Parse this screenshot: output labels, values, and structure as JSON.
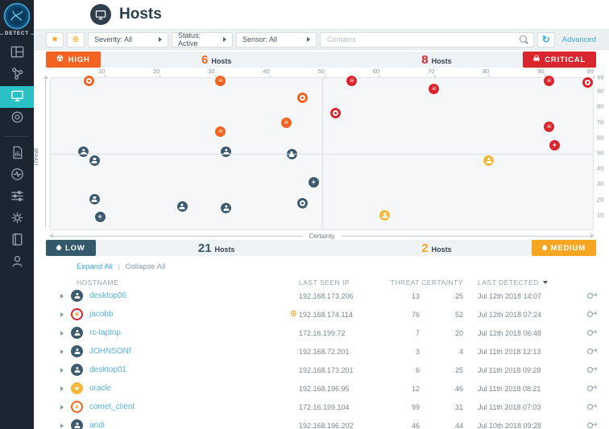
{
  "glyphs": {
    "star": "★",
    "crosshair": "⊕",
    "skull": "☠",
    "plus": "+",
    "radiation": "☢",
    "refresh": "↻"
  },
  "colors": {
    "accent_teal": "#2bc1c4",
    "high_orange": "#f26322",
    "critical_red": "#d9252e",
    "low_navy": "#33596b",
    "medium_amber": "#f5a623",
    "link_blue": "#3aa9dc",
    "sidebar_bg": "#1b2631"
  },
  "sidebar": {
    "logo_label": "DETECT",
    "groups": [
      {
        "items": [
          {
            "id": "dashboard",
            "icon": "grid-icon"
          },
          {
            "id": "network",
            "icon": "network-icon"
          },
          {
            "id": "hosts",
            "icon": "monitor-icon",
            "active": true
          },
          {
            "id": "radar",
            "icon": "radar-icon"
          }
        ]
      },
      {
        "items": [
          {
            "id": "reports",
            "icon": "report-icon"
          },
          {
            "id": "activity",
            "icon": "pulse-icon"
          },
          {
            "id": "tuning",
            "icon": "sliders-icon"
          },
          {
            "id": "settings",
            "icon": "gear-icon"
          },
          {
            "id": "notebook",
            "icon": "book-icon"
          },
          {
            "id": "account",
            "icon": "person-icon"
          }
        ]
      }
    ]
  },
  "header": {
    "title": "Hosts"
  },
  "filters": {
    "severity": "Severity: All",
    "status": "Status: Active",
    "sensor": "Sensor: All",
    "contains_placeholder": "Contains",
    "advanced_label": "Advanced"
  },
  "quadrants": {
    "high": {
      "label": "HIGH",
      "count": "6",
      "unit": "Hosts"
    },
    "critical": {
      "label": "CRITICAL",
      "count": "8",
      "unit": "Hosts"
    },
    "low": {
      "label": "LOW",
      "count": "21",
      "unit": "Hosts"
    },
    "medium": {
      "label": "MEDIUM",
      "count": "2",
      "unit": "Hosts"
    }
  },
  "chart_data": {
    "type": "scatter",
    "xlabel": "Certainty",
    "ylabel": "Threat",
    "xlim": [
      0,
      99
    ],
    "ylim": [
      0,
      99
    ],
    "x_ticks": [
      10,
      20,
      30,
      40,
      50,
      60,
      70,
      80,
      90,
      99
    ],
    "y_ticks": [
      99,
      90,
      80,
      70,
      60,
      50,
      40,
      30,
      20,
      10
    ],
    "quadrant_split": {
      "x": 50,
      "y": 50
    },
    "series": [
      {
        "name": "high",
        "color": "#f26322",
        "points": [
          {
            "x": 7,
            "y": 97,
            "g": "ring"
          },
          {
            "x": 31,
            "y": 97,
            "g": "skull"
          },
          {
            "x": 46,
            "y": 86,
            "g": "ring"
          },
          {
            "x": 43,
            "y": 70,
            "g": "skull"
          },
          {
            "x": 31,
            "y": 64,
            "g": "skull"
          }
        ]
      },
      {
        "name": "critical",
        "color": "#d9252e",
        "points": [
          {
            "x": 55,
            "y": 97,
            "g": "skull"
          },
          {
            "x": 70,
            "y": 92,
            "g": "skull"
          },
          {
            "x": 52,
            "y": 76,
            "g": "ring"
          },
          {
            "x": 91,
            "y": 97,
            "g": "skull"
          },
          {
            "x": 98,
            "y": 96,
            "g": "ring"
          },
          {
            "x": 91,
            "y": 67,
            "g": "skull"
          },
          {
            "x": 92,
            "y": 55,
            "g": "plus"
          }
        ]
      },
      {
        "name": "low",
        "color": "#3d5a6e",
        "points": [
          {
            "x": 6,
            "y": 51,
            "g": "face"
          },
          {
            "x": 8,
            "y": 45,
            "g": "face"
          },
          {
            "x": 8,
            "y": 20,
            "g": "face"
          },
          {
            "x": 9,
            "y": 8,
            "g": "plus"
          },
          {
            "x": 24,
            "y": 15,
            "g": "face"
          },
          {
            "x": 32,
            "y": 51,
            "g": "face"
          },
          {
            "x": 32,
            "y": 14,
            "g": "face"
          },
          {
            "x": 44,
            "y": 49,
            "g": "face"
          },
          {
            "x": 48,
            "y": 31,
            "g": "plus"
          },
          {
            "x": 46,
            "y": 17,
            "g": "ring"
          }
        ]
      },
      {
        "name": "medium",
        "color": "#f5b83d",
        "points": [
          {
            "x": 80,
            "y": 45,
            "g": "face"
          },
          {
            "x": 61,
            "y": 9,
            "g": "face"
          }
        ]
      }
    ]
  },
  "table": {
    "expand_all": "Expand All",
    "separator": "|",
    "collapse_all": "Collapse All",
    "columns": [
      "HOSTNAME",
      "LAST SEEN IP",
      "THREAT",
      "CERTAINTY",
      "LAST DETECTED"
    ],
    "rows": [
      {
        "hostname": "desktop06",
        "icon": "navy-face",
        "ip": "192.168.173.206",
        "threat": "13",
        "certainty": "25",
        "last_detected": "Jul 12th 2018 14:07"
      },
      {
        "hostname": "jacobb",
        "icon": "red-ring-star",
        "targeted": true,
        "ip": "192.168.174.114",
        "threat": "76",
        "certainty": "52",
        "last_detected": "Jul 12th 2018 07:24"
      },
      {
        "hostname": "rc-laptop",
        "icon": "navy-face",
        "ip": "172.16.199.72",
        "threat": "7",
        "certainty": "20",
        "last_detected": "Jul 12th 2018 06:48"
      },
      {
        "hostname": "JOHNSONf",
        "icon": "navy-face",
        "ip": "192.168.72.201",
        "threat": "3",
        "certainty": "4",
        "last_detected": "Jul 11th 2018 12:13"
      },
      {
        "hostname": "desktop01",
        "icon": "navy-face",
        "ip": "192.168.173.201",
        "threat": "6",
        "certainty": "25",
        "last_detected": "Jul 11th 2018 09:28"
      },
      {
        "hostname": "oracle",
        "icon": "amber-star",
        "ip": "192.168.196.95",
        "threat": "12",
        "certainty": "46",
        "last_detected": "Jul 11th 2018 08:21"
      },
      {
        "hostname": "comet_client",
        "icon": "orange-ring-star",
        "ip": "172.16.199.104",
        "threat": "99",
        "certainty": "31",
        "last_detected": "Jul 11th 2018 07:03"
      },
      {
        "hostname": "andi",
        "icon": "navy-face",
        "ip": "192.168.196.202",
        "threat": "46",
        "certainty": "44",
        "last_detected": "Jul 10th 2018 09:28"
      }
    ]
  }
}
